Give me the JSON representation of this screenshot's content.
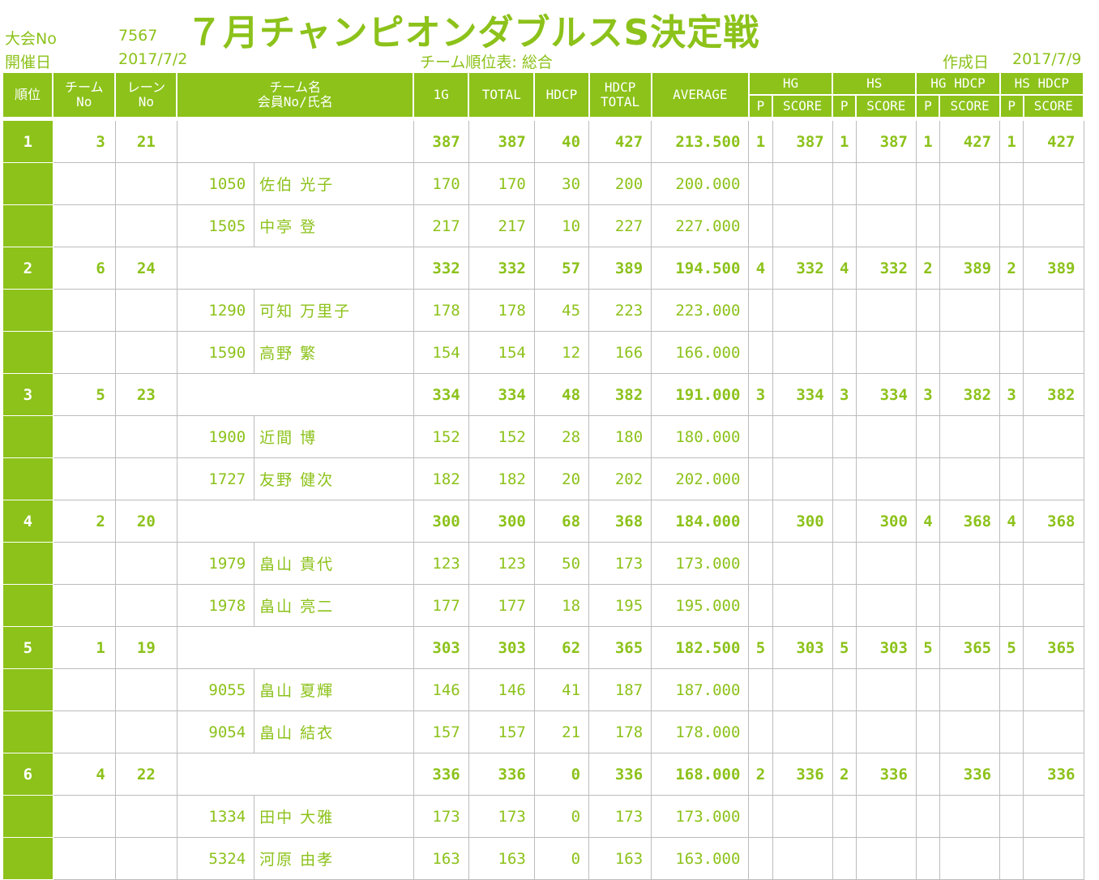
{
  "header": {
    "title": "７月チャンピオンダブルスS決定戦",
    "tournament_no_label": "大会No",
    "tournament_no": "7567",
    "date_label": "開催日",
    "date": "2017/7/2",
    "table_name": "チーム順位表: 総合",
    "created_label": "作成日",
    "created_date": "2017/7/9"
  },
  "columns": {
    "rank": "順位",
    "team_no_1": "チーム",
    "team_no_2": "No",
    "lane_no_1": "レーン",
    "lane_no_2": "No",
    "team_name": "チーム名",
    "member": "会員No/氏名",
    "g1": "1G",
    "total": "TOTAL",
    "hdcp": "HDCP",
    "hdcp_total_1": "HDCP",
    "hdcp_total_2": "TOTAL",
    "average": "AVERAGE",
    "hg": "HG",
    "hs": "HS",
    "hg_hdcp": "HG HDCP",
    "hs_hdcp": "HS HDCP",
    "p": "P",
    "score": "SCORE"
  },
  "chart_data": {
    "type": "table",
    "teams": [
      {
        "rank": "1",
        "team_no": "3",
        "lane_no": "21",
        "g1": "387",
        "total": "387",
        "hdcp": "40",
        "hdcp_total": "427",
        "average": "213.500",
        "hg_p": "1",
        "hg_score": "387",
        "hs_p": "1",
        "hs_score": "387",
        "hgh_p": "1",
        "hgh_score": "427",
        "hsh_p": "1",
        "hsh_score": "427",
        "members": [
          {
            "no": "1050",
            "name": "佐伯 光子",
            "g1": "170",
            "total": "170",
            "hdcp": "30",
            "hdcp_total": "200",
            "average": "200.000"
          },
          {
            "no": "1505",
            "name": "中亭 登",
            "g1": "217",
            "total": "217",
            "hdcp": "10",
            "hdcp_total": "227",
            "average": "227.000"
          }
        ]
      },
      {
        "rank": "2",
        "team_no": "6",
        "lane_no": "24",
        "g1": "332",
        "total": "332",
        "hdcp": "57",
        "hdcp_total": "389",
        "average": "194.500",
        "hg_p": "4",
        "hg_score": "332",
        "hs_p": "4",
        "hs_score": "332",
        "hgh_p": "2",
        "hgh_score": "389",
        "hsh_p": "2",
        "hsh_score": "389",
        "members": [
          {
            "no": "1290",
            "name": "可知 万里子",
            "g1": "178",
            "total": "178",
            "hdcp": "45",
            "hdcp_total": "223",
            "average": "223.000"
          },
          {
            "no": "1590",
            "name": "高野 繁",
            "g1": "154",
            "total": "154",
            "hdcp": "12",
            "hdcp_total": "166",
            "average": "166.000"
          }
        ]
      },
      {
        "rank": "3",
        "team_no": "5",
        "lane_no": "23",
        "g1": "334",
        "total": "334",
        "hdcp": "48",
        "hdcp_total": "382",
        "average": "191.000",
        "hg_p": "3",
        "hg_score": "334",
        "hs_p": "3",
        "hs_score": "334",
        "hgh_p": "3",
        "hgh_score": "382",
        "hsh_p": "3",
        "hsh_score": "382",
        "members": [
          {
            "no": "1900",
            "name": "近間 博",
            "g1": "152",
            "total": "152",
            "hdcp": "28",
            "hdcp_total": "180",
            "average": "180.000"
          },
          {
            "no": "1727",
            "name": "友野 健次",
            "g1": "182",
            "total": "182",
            "hdcp": "20",
            "hdcp_total": "202",
            "average": "202.000"
          }
        ]
      },
      {
        "rank": "4",
        "team_no": "2",
        "lane_no": "20",
        "g1": "300",
        "total": "300",
        "hdcp": "68",
        "hdcp_total": "368",
        "average": "184.000",
        "hg_p": "",
        "hg_score": "300",
        "hs_p": "",
        "hs_score": "300",
        "hgh_p": "4",
        "hgh_score": "368",
        "hsh_p": "4",
        "hsh_score": "368",
        "members": [
          {
            "no": "1979",
            "name": "畠山 貴代",
            "g1": "123",
            "total": "123",
            "hdcp": "50",
            "hdcp_total": "173",
            "average": "173.000"
          },
          {
            "no": "1978",
            "name": "畠山 亮二",
            "g1": "177",
            "total": "177",
            "hdcp": "18",
            "hdcp_total": "195",
            "average": "195.000"
          }
        ]
      },
      {
        "rank": "5",
        "team_no": "1",
        "lane_no": "19",
        "g1": "303",
        "total": "303",
        "hdcp": "62",
        "hdcp_total": "365",
        "average": "182.500",
        "hg_p": "5",
        "hg_score": "303",
        "hs_p": "5",
        "hs_score": "303",
        "hgh_p": "5",
        "hgh_score": "365",
        "hsh_p": "5",
        "hsh_score": "365",
        "members": [
          {
            "no": "9055",
            "name": "畠山 夏輝",
            "g1": "146",
            "total": "146",
            "hdcp": "41",
            "hdcp_total": "187",
            "average": "187.000"
          },
          {
            "no": "9054",
            "name": "畠山 結衣",
            "g1": "157",
            "total": "157",
            "hdcp": "21",
            "hdcp_total": "178",
            "average": "178.000"
          }
        ]
      },
      {
        "rank": "6",
        "team_no": "4",
        "lane_no": "22",
        "g1": "336",
        "total": "336",
        "hdcp": "0",
        "hdcp_total": "336",
        "average": "168.000",
        "hg_p": "2",
        "hg_score": "336",
        "hs_p": "2",
        "hs_score": "336",
        "hgh_p": "",
        "hgh_score": "336",
        "hsh_p": "",
        "hsh_score": "336",
        "members": [
          {
            "no": "1334",
            "name": "田中 大雅",
            "g1": "173",
            "total": "173",
            "hdcp": "0",
            "hdcp_total": "173",
            "average": "173.000"
          },
          {
            "no": "5324",
            "name": "河原 由孝",
            "g1": "163",
            "total": "163",
            "hdcp": "0",
            "hdcp_total": "163",
            "average": "163.000"
          }
        ]
      }
    ]
  }
}
